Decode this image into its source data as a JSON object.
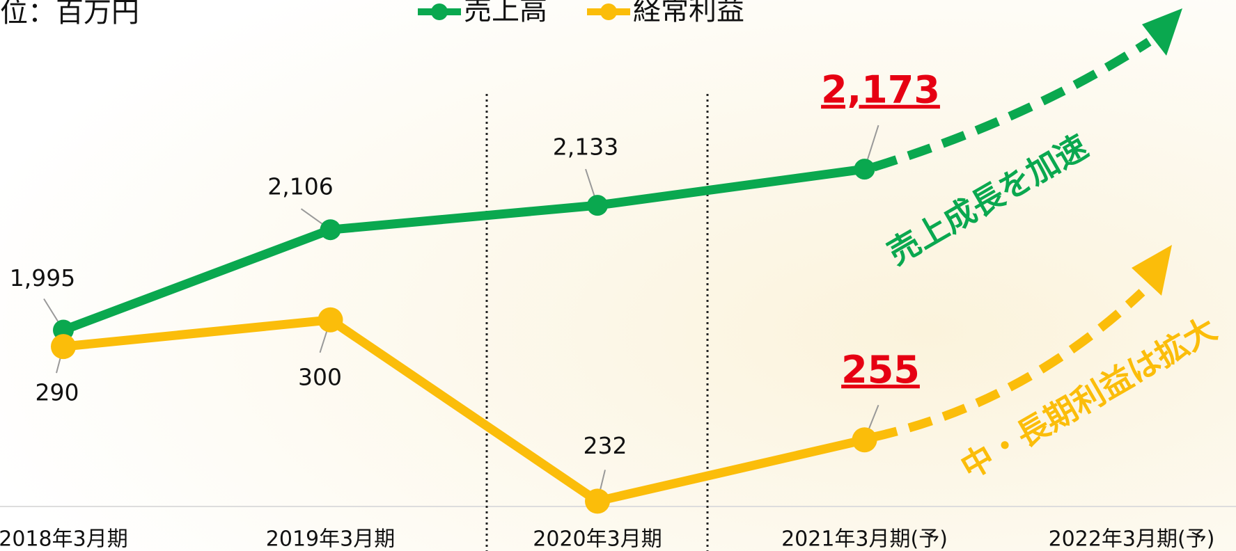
{
  "chart_data": {
    "type": "line",
    "subtitle": "位：百万円",
    "categories": [
      "2018年3月期",
      "2019年3月期",
      "2020年3月期",
      "2021年3月期(予)",
      "2022年3月期(予)"
    ],
    "series": [
      {
        "name": "売上高",
        "color": "#0aa84f",
        "values": [
          1995,
          2106,
          2133,
          2173,
          null
        ],
        "value_labels": [
          "1,995",
          "2,106",
          "2,133",
          "2,173",
          null
        ]
      },
      {
        "name": "経常利益",
        "color": "#fbbd0a",
        "axis": "y2",
        "values": [
          290,
          300,
          232,
          255,
          null
        ]
      }
    ],
    "ylim": [
      1800,
      2360
    ],
    "y2lim": [
      230,
      420
    ],
    "annotations": [
      "売上成長を加速",
      "中・長期利益は拡大"
    ],
    "legend": "top"
  }
}
